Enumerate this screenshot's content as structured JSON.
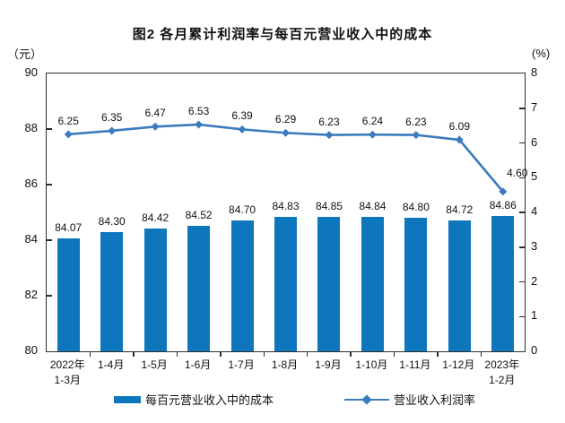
{
  "chart_data": {
    "type": "bar",
    "title": "图2 各月累计利润率与每百元营业收入中的成本",
    "categories": [
      "2022年\n1-3月",
      "1-4月",
      "1-5月",
      "1-6月",
      "1-7月",
      "1-8月",
      "1-9月",
      "1-10月",
      "1-11月",
      "1-12月",
      "2023年\n1-2月"
    ],
    "series": [
      {
        "name": "每百元营业收入中的成本",
        "type": "bar",
        "axis": "left",
        "color": "#0e76bd",
        "values": [
          84.07,
          84.3,
          84.42,
          84.52,
          84.7,
          84.83,
          84.85,
          84.84,
          84.8,
          84.72,
          84.86
        ]
      },
      {
        "name": "营业收入利润率",
        "type": "line",
        "axis": "right",
        "color": "#3b7bbe",
        "values": [
          6.25,
          6.35,
          6.47,
          6.53,
          6.39,
          6.29,
          6.23,
          6.24,
          6.23,
          6.09,
          4.6
        ]
      }
    ],
    "left_axis": {
      "unit": "（元）",
      "range": [
        80,
        90
      ],
      "ticks": [
        90,
        88,
        86,
        84,
        82,
        80
      ]
    },
    "right_axis": {
      "unit": "(%)",
      "range": [
        0,
        8
      ],
      "ticks": [
        8,
        7,
        6,
        5,
        4,
        3,
        2,
        1,
        0
      ]
    },
    "grid": false,
    "legend_position": "bottom",
    "value_label_decimals": 2
  }
}
